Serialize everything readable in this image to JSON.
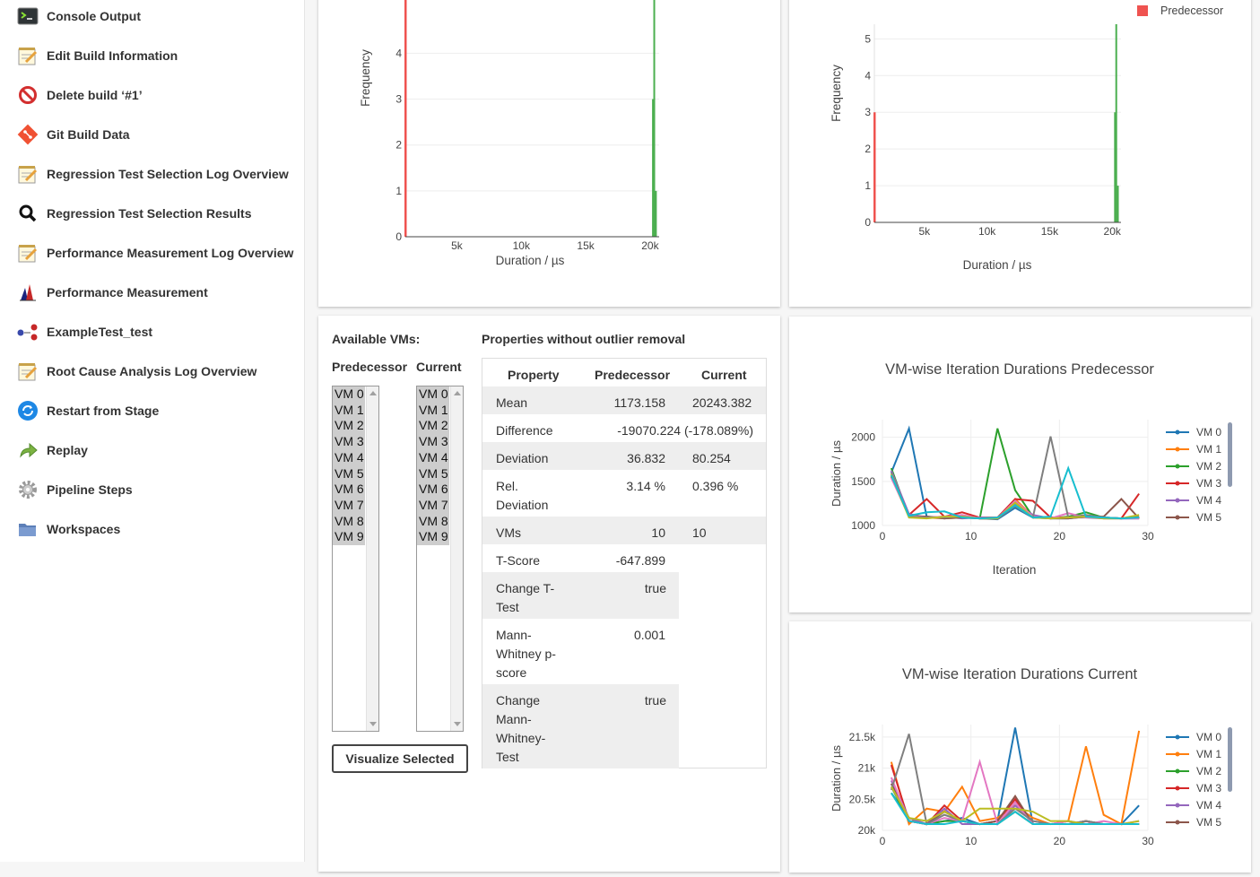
{
  "sidebar": {
    "items": [
      {
        "label": "Console Output",
        "icon": "terminal-icon"
      },
      {
        "label": "Edit Build Information",
        "icon": "notepad-icon"
      },
      {
        "label": "Delete build ‘#1’",
        "icon": "delete-icon"
      },
      {
        "label": "Git Build Data",
        "icon": "git-icon"
      },
      {
        "label": "Regression Test Selection Log Overview",
        "icon": "notepad-icon"
      },
      {
        "label": "Regression Test Selection Results",
        "icon": "magnifier-icon"
      },
      {
        "label": "Performance Measurement Log Overview",
        "icon": "notepad-icon"
      },
      {
        "label": "Performance Measurement",
        "icon": "performance-chart-icon"
      },
      {
        "label": "ExampleTest_test",
        "icon": "dots-icon"
      },
      {
        "label": "Root Cause Analysis Log Overview",
        "icon": "notepad-icon"
      },
      {
        "label": "Restart from Stage",
        "icon": "restart-icon"
      },
      {
        "label": "Replay",
        "icon": "replay-arrow-icon"
      },
      {
        "label": "Pipeline Steps",
        "icon": "gear-icon"
      },
      {
        "label": "Workspaces",
        "icon": "folder-icon"
      }
    ]
  },
  "colors": {
    "predecessor": "#ef5350",
    "current": "#4caf50",
    "vm_colors": [
      "#1f77b4",
      "#ff7f0e",
      "#2ca02c",
      "#d62728",
      "#9467bd",
      "#8c564b",
      "#e377c2",
      "#7f7f7f",
      "#bcbd22",
      "#17becf"
    ]
  },
  "histogram_left": {
    "xlabel": "Duration / µs",
    "ylabel": "Frequency",
    "x_ticks": [
      "5k",
      "10k",
      "15k",
      "20k"
    ],
    "y_ticks": [
      "0",
      "1",
      "2",
      "3",
      "4"
    ],
    "xlim": [
      1000,
      20700
    ],
    "ylim": [
      0,
      5.2
    ],
    "predecessor_bars": [
      {
        "x": 1150,
        "value": 3
      },
      {
        "x": 1170,
        "value": 5.2
      }
    ],
    "current_bars": [
      {
        "x": 20150,
        "value": 3
      },
      {
        "x": 20250,
        "value": 5.2
      },
      {
        "x": 20380,
        "value": 1
      }
    ]
  },
  "histogram_right": {
    "xlabel": "Duration / µs",
    "ylabel": "Frequency",
    "x_ticks": [
      "5k",
      "10k",
      "15k",
      "20k"
    ],
    "y_ticks": [
      "0",
      "1",
      "2",
      "3",
      "4",
      "5"
    ],
    "xlim": [
      1000,
      20700
    ],
    "ylim": [
      0,
      5.4
    ],
    "legend": "Predecessor",
    "predecessor_bars": [
      {
        "x": 1150,
        "value": 3
      }
    ],
    "current_bars": [
      {
        "x": 20150,
        "value": 3
      },
      {
        "x": 20250,
        "value": 5.4
      },
      {
        "x": 20380,
        "value": 1
      }
    ]
  },
  "vm_panel": {
    "available_label": "Available VMs:",
    "predecessor_label": "Predecessor",
    "current_label": "Current",
    "predecessor_vms": [
      "VM 0",
      "VM 1",
      "VM 2",
      "VM 3",
      "VM 4",
      "VM 5",
      "VM 6",
      "VM 7",
      "VM 8",
      "VM 9"
    ],
    "current_vms": [
      "VM 0",
      "VM 1",
      "VM 2",
      "VM 3",
      "VM 4",
      "VM 5",
      "VM 6",
      "VM 7",
      "VM 8",
      "VM 9"
    ],
    "button_label": "Visualize Selected"
  },
  "properties": {
    "title": "Properties without outlier removal",
    "headers": [
      "Property",
      "Predecessor",
      "Current"
    ],
    "mean": {
      "label": "Mean",
      "pred": "1173.158",
      "cur": "20243.382"
    },
    "difference": {
      "label": "Difference",
      "value": "-19070.224 (-178.089%)"
    },
    "deviation": {
      "label": "Deviation",
      "pred": "36.832",
      "cur": "80.254"
    },
    "rel_deviation": {
      "label_1": "Rel.",
      "label_2": "Deviation",
      "pred": "3.14 %",
      "cur": "0.396 %"
    },
    "vms": {
      "label": "VMs",
      "pred": "10",
      "cur": "10"
    },
    "tscore": {
      "label": "T-Score",
      "value": "-647.899"
    },
    "change_ttest": {
      "label_1": "Change T-",
      "label_2": "Test",
      "value": "true"
    },
    "mann_pscore": {
      "label_1": "Mann-",
      "label_2": "Whitney p-",
      "label_3": "score",
      "value": "0.001"
    },
    "change_mann": {
      "label_1": "Change",
      "label_2": "Mann-",
      "label_3": "Whitney-",
      "label_4": "Test",
      "value": "true"
    }
  },
  "chart_data": [
    {
      "type": "line",
      "title": "VM-wise Iteration Durations Predecessor",
      "xlabel": "Iteration",
      "ylabel": "Duration / µs",
      "xlim": [
        0,
        30
      ],
      "ylim": [
        1000,
        2200
      ],
      "x_ticks": [
        "0",
        "10",
        "20",
        "30"
      ],
      "y_ticks": [
        "1000",
        "1500",
        "2000"
      ],
      "legend_entries": [
        "VM 0",
        "VM 1",
        "VM 2",
        "VM 3",
        "VM 4",
        "VM 5"
      ],
      "x": [
        1,
        3,
        5,
        7,
        9,
        11,
        13,
        15,
        17,
        19,
        21,
        23,
        25,
        27,
        29
      ],
      "series": [
        {
          "name": "VM 0",
          "values": [
            1600,
            2100,
            1100,
            1080,
            1100,
            1080,
            1070,
            1200,
            1090,
            1080,
            1080,
            1100,
            1090,
            1080,
            1080
          ]
        },
        {
          "name": "VM 1",
          "values": [
            1550,
            1100,
            1090,
            1080,
            1090,
            1080,
            1080,
            1300,
            1100,
            1090,
            1090,
            1100,
            1080,
            1080,
            1090
          ]
        },
        {
          "name": "VM 2",
          "values": [
            1650,
            1100,
            1100,
            1090,
            1100,
            1080,
            2100,
            1400,
            1100,
            1080,
            1100,
            1150,
            1090,
            1080,
            1100
          ]
        },
        {
          "name": "VM 3",
          "values": [
            1580,
            1120,
            1300,
            1100,
            1150,
            1090,
            1090,
            1300,
            1280,
            1090,
            1090,
            1100,
            1090,
            1080,
            1360
          ]
        },
        {
          "name": "VM 4",
          "values": [
            1620,
            1130,
            1090,
            1100,
            1080,
            1090,
            1080,
            1250,
            1120,
            1080,
            1090,
            1090,
            1080,
            1080,
            1080
          ]
        },
        {
          "name": "VM 5",
          "values": [
            1560,
            1110,
            1100,
            1080,
            1090,
            1080,
            1080,
            1260,
            1100,
            1080,
            1080,
            1100,
            1100,
            1300,
            1080
          ]
        },
        {
          "name": "",
          "values": [
            1540,
            1110,
            1090,
            1100,
            1120,
            1080,
            1080,
            1280,
            1100,
            1080,
            1140,
            1090,
            1090,
            1080,
            1080
          ]
        },
        {
          "name": "",
          "values": [
            1600,
            1100,
            1090,
            1090,
            1100,
            1080,
            1080,
            1220,
            1090,
            2010,
            1090,
            1120,
            1090,
            1080,
            1100
          ]
        },
        {
          "name": "",
          "values": [
            1580,
            1090,
            1080,
            1100,
            1100,
            1080,
            1080,
            1260,
            1090,
            1080,
            1090,
            1100,
            1080,
            1080,
            1120
          ]
        },
        {
          "name": "",
          "values": [
            1570,
            1110,
            1150,
            1160,
            1090,
            1080,
            1090,
            1230,
            1090,
            1100,
            1650,
            1100,
            1090,
            1080,
            1090
          ]
        }
      ]
    },
    {
      "type": "line",
      "title": "VM-wise Iteration Durations Current",
      "xlabel": "",
      "ylabel": "Duration / µs",
      "xlim": [
        0,
        30
      ],
      "ylim": [
        20000,
        21700
      ],
      "x_ticks": [
        "0",
        "10",
        "20",
        "30"
      ],
      "y_ticks": [
        "20k",
        "20.5k",
        "21k",
        "21.5k"
      ],
      "legend_entries": [
        "VM 0",
        "VM 1",
        "VM 2",
        "VM 3",
        "VM 4",
        "VM 5"
      ],
      "x": [
        1,
        3,
        5,
        7,
        9,
        11,
        13,
        15,
        17,
        19,
        21,
        23,
        25,
        27,
        29
      ],
      "series": [
        {
          "name": "VM 0",
          "values": [
            20700,
            20150,
            20100,
            20150,
            20200,
            20100,
            20150,
            21650,
            20100,
            20100,
            20150,
            20100,
            20100,
            20100,
            20400
          ]
        },
        {
          "name": "VM 1",
          "values": [
            21100,
            20100,
            20350,
            20300,
            20700,
            20150,
            20200,
            20400,
            20200,
            20100,
            20150,
            21350,
            20250,
            20100,
            21600
          ]
        },
        {
          "name": "VM 2",
          "values": [
            20600,
            20200,
            20100,
            20150,
            20150,
            20100,
            20100,
            20300,
            20100,
            20100,
            20100,
            20150,
            20100,
            20100,
            20100
          ]
        },
        {
          "name": "VM 3",
          "values": [
            21050,
            20150,
            20100,
            20400,
            20150,
            20100,
            20150,
            20500,
            20100,
            20100,
            20100,
            20150,
            20100,
            20100,
            20100
          ]
        },
        {
          "name": "VM 4",
          "values": [
            20800,
            20200,
            20100,
            20350,
            20100,
            20100,
            20100,
            20400,
            20150,
            20100,
            20100,
            20100,
            20100,
            20100,
            20150
          ]
        },
        {
          "name": "VM 5",
          "values": [
            20750,
            20150,
            20100,
            20300,
            20150,
            20100,
            20150,
            20550,
            20100,
            20100,
            20100,
            20150,
            20100,
            20100,
            20100
          ]
        },
        {
          "name": "",
          "values": [
            20850,
            20150,
            20100,
            20200,
            20150,
            21100,
            20100,
            20450,
            20100,
            20100,
            20150,
            20100,
            20150,
            20100,
            20100
          ]
        },
        {
          "name": "",
          "values": [
            20650,
            21550,
            20100,
            20250,
            20150,
            20100,
            20100,
            20350,
            20150,
            20100,
            20100,
            20150,
            20100,
            20100,
            20100
          ]
        },
        {
          "name": "",
          "values": [
            20700,
            20200,
            20150,
            20300,
            20150,
            20350,
            20350,
            20350,
            20300,
            20150,
            20150,
            20100,
            20100,
            20100,
            20150
          ]
        },
        {
          "name": "",
          "values": [
            20600,
            20150,
            20100,
            20100,
            20150,
            20100,
            20100,
            20300,
            20100,
            20100,
            20100,
            20100,
            20100,
            20100,
            20100
          ]
        }
      ]
    }
  ]
}
